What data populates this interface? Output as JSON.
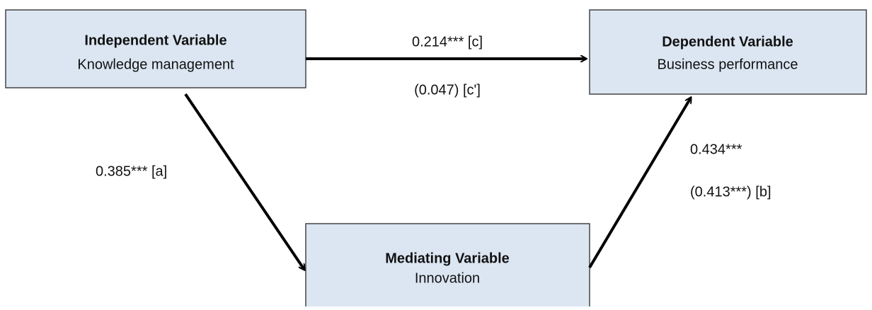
{
  "nodes": [
    {
      "title": "Independent Variable",
      "subtitle": "Knowledge management"
    },
    {
      "title": "Dependent Variable",
      "subtitle": "Business performance"
    },
    {
      "title": "Mediating Variable",
      "subtitle": "Innovation"
    }
  ],
  "edges": [
    {
      "labels": [
        "0.214*** [c]",
        "(0.047) [c']"
      ]
    },
    {
      "labels": [
        "0.385*** [a]"
      ]
    },
    {
      "labels": [
        "0.434***",
        "(0.413***) [b]"
      ]
    }
  ]
}
